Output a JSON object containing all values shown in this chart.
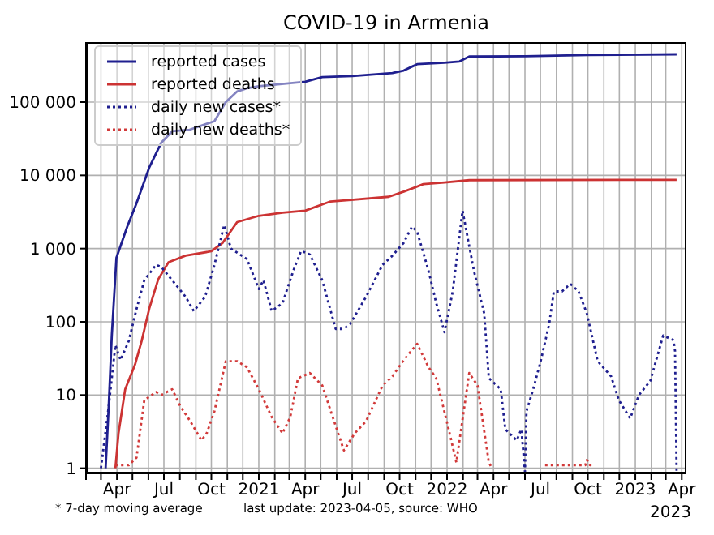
{
  "chart_data": {
    "type": "line",
    "title": "COVID-19 in Armenia",
    "annotations": [
      "* 7-day moving average",
      "last update: 2023-04-05, source: WHO",
      "2023"
    ],
    "log": "y",
    "grid": true,
    "legend": "top left",
    "marker": "none",
    "xlim": [
      "2020-02-01",
      "2023-04-10"
    ],
    "xticks": [
      {
        "value": "2020-02-01",
        "label": null
      },
      {
        "value": "2020-03-01",
        "label": null
      },
      {
        "value": "2020-04-01",
        "label": "Apr"
      },
      {
        "value": "2020-05-01",
        "label": null
      },
      {
        "value": "2020-06-01",
        "label": null
      },
      {
        "value": "2020-07-01",
        "label": "Jul"
      },
      {
        "value": "2020-08-01",
        "label": null
      },
      {
        "value": "2020-09-01",
        "label": null
      },
      {
        "value": "2020-10-01",
        "label": "Oct"
      },
      {
        "value": "2020-11-01",
        "label": null
      },
      {
        "value": "2020-12-01",
        "label": null
      },
      {
        "value": "2021-01-01",
        "label": "2021"
      },
      {
        "value": "2021-02-01",
        "label": null
      },
      {
        "value": "2021-03-01",
        "label": null
      },
      {
        "value": "2021-04-01",
        "label": "Apr"
      },
      {
        "value": "2021-05-01",
        "label": null
      },
      {
        "value": "2021-06-01",
        "label": null
      },
      {
        "value": "2021-07-01",
        "label": "Jul"
      },
      {
        "value": "2021-08-01",
        "label": null
      },
      {
        "value": "2021-09-01",
        "label": null
      },
      {
        "value": "2021-10-01",
        "label": "Oct"
      },
      {
        "value": "2021-11-01",
        "label": null
      },
      {
        "value": "2021-12-01",
        "label": null
      },
      {
        "value": "2022-01-01",
        "label": "2022"
      },
      {
        "value": "2022-02-01",
        "label": null
      },
      {
        "value": "2022-03-01",
        "label": null
      },
      {
        "value": "2022-04-01",
        "label": "Apr"
      },
      {
        "value": "2022-05-01",
        "label": null
      },
      {
        "value": "2022-06-01",
        "label": null
      },
      {
        "value": "2022-07-01",
        "label": "Jul"
      },
      {
        "value": "2022-08-01",
        "label": null
      },
      {
        "value": "2022-09-01",
        "label": null
      },
      {
        "value": "2022-10-01",
        "label": "Oct"
      },
      {
        "value": "2022-11-01",
        "label": null
      },
      {
        "value": "2022-12-01",
        "label": null
      },
      {
        "value": "2023-01-01",
        "label": "2023"
      },
      {
        "value": "2023-02-01",
        "label": null
      },
      {
        "value": "2023-03-01",
        "label": null
      },
      {
        "value": "2023-04-01",
        "label": "Apr"
      }
    ],
    "ylim": [
      0.85,
      660000
    ],
    "yticks": [
      1,
      10,
      100,
      {
        "value": 1000,
        "label": "1 000"
      },
      {
        "value": 10000,
        "label": "10 000"
      },
      {
        "value": 100000,
        "label": "100 000"
      }
    ],
    "series": [
      {
        "name": "reported cases",
        "color": "#1f1f8f",
        "line_style": "solid",
        "x": [
          "2020-03-10",
          "2020-03-16",
          "2020-03-22",
          "2020-03-31",
          "2020-04-21",
          "2020-05-08",
          "2020-06-03",
          "2020-06-26",
          "2020-07-17",
          "2020-08-20",
          "2020-10-07",
          "2020-10-29",
          "2020-11-20",
          "2020-12-09",
          "2021-01-01",
          "2021-04-01",
          "2021-05-04",
          "2021-07-01",
          "2021-09-17",
          "2021-10-09",
          "2021-11-04",
          "2021-12-27",
          "2022-01-25",
          "2022-02-13",
          "2022-06-01",
          "2022-10-01",
          "2023-03-22"
        ],
        "values": [
          1,
          7,
          65,
          750,
          2000,
          4000,
          13000,
          28000,
          40000,
          42000,
          55000,
          100000,
          140000,
          155000,
          165000,
          190000,
          220000,
          227000,
          250000,
          270000,
          330000,
          345000,
          360000,
          420000,
          423000,
          440000,
          450000
        ]
      },
      {
        "name": "reported deaths",
        "color": "#cc3333",
        "line_style": "solid",
        "x": [
          "2020-03-29",
          "2020-04-04",
          "2020-04-17",
          "2020-05-06",
          "2020-05-19",
          "2020-06-03",
          "2020-06-20",
          "2020-07-10",
          "2020-08-12",
          "2020-10-01",
          "2020-10-23",
          "2020-11-20",
          "2021-01-01",
          "2021-02-16",
          "2021-04-01",
          "2021-05-20",
          "2021-06-24",
          "2021-09-10",
          "2021-10-09",
          "2021-11-16",
          "2021-12-27",
          "2022-02-13",
          "2023-03-22"
        ],
        "values": [
          1,
          3,
          12,
          26,
          55,
          155,
          380,
          650,
          800,
          920,
          1200,
          2300,
          2800,
          3100,
          3300,
          4400,
          4600,
          5100,
          6000,
          7600,
          8000,
          8600,
          8700
        ]
      },
      {
        "name": "daily new cases*",
        "color": "#1f1f8f",
        "line_style": "dotted",
        "x": [
          "2020-03-01",
          "2020-03-16",
          "2020-03-29",
          "2020-04-08",
          "2020-04-24",
          "2020-05-09",
          "2020-05-24",
          "2020-06-16",
          "2020-06-26",
          "2020-07-17",
          "2020-08-12",
          "2020-08-28",
          "2020-09-19",
          "2020-10-07",
          "2020-10-26",
          "2020-11-08",
          "2020-12-09",
          "2021-01-01",
          "2021-01-10",
          "2021-01-26",
          "2021-02-16",
          "2021-03-09",
          "2021-03-24",
          "2021-04-10",
          "2021-05-04",
          "2021-05-30",
          "2021-06-15",
          "2021-06-27",
          "2021-07-28",
          "2021-08-29",
          "2021-09-17",
          "2021-10-09",
          "2021-10-25",
          "2021-11-04",
          "2021-11-26",
          "2021-12-11",
          "2021-12-27",
          "2022-01-12",
          "2022-01-31",
          "2022-02-22",
          "2022-03-14",
          "2022-03-23",
          "2022-04-15",
          "2022-04-24",
          "2022-05-16",
          "2022-05-25",
          "2022-06-01",
          "2022-06-04",
          "2022-06-17",
          "2022-07-02",
          "2022-07-18",
          "2022-07-27",
          "2022-08-12",
          "2022-08-28",
          "2022-09-13",
          "2022-09-29",
          "2022-10-20",
          "2022-11-15",
          "2022-11-30",
          "2022-12-22",
          "2023-01-08",
          "2023-01-30",
          "2023-02-24",
          "2023-03-16",
          "2023-03-19",
          "2023-03-22"
        ],
        "values": [
          1,
          7,
          48,
          30,
          55,
          150,
          370,
          600,
          560,
          370,
          220,
          140,
          220,
          600,
          2100,
          1000,
          720,
          280,
          370,
          140,
          180,
          500,
          930,
          830,
          370,
          80,
          80,
          93,
          220,
          600,
          800,
          1200,
          2000,
          1700,
          500,
          180,
          72,
          260,
          3300,
          500,
          130,
          17,
          12,
          3.4,
          2.4,
          3.4,
          0.9,
          6,
          12,
          30,
          93,
          260,
          260,
          330,
          260,
          130,
          29,
          18,
          8.5,
          4.8,
          10,
          15.6,
          65,
          56,
          40,
          0.9
        ]
      },
      {
        "name": "daily new deaths*",
        "color": "#d23a3a",
        "line_style": "dotted",
        "x": [
          "2020-03-29",
          "2020-04-24",
          "2020-05-09",
          "2020-05-24",
          "2020-06-16",
          "2020-06-26",
          "2020-07-17",
          "2020-08-02",
          "2020-08-21",
          "2020-09-12",
          "2020-09-22",
          "2020-10-07",
          "2020-10-29",
          "2020-11-20",
          "2020-12-09",
          "2021-01-01",
          "2021-01-26",
          "2021-02-16",
          "2021-03-03",
          "2021-03-18",
          "2021-04-10",
          "2021-05-04",
          "2021-05-27",
          "2021-06-15",
          "2021-07-06",
          "2021-07-28",
          "2021-08-29",
          "2021-09-17",
          "2021-10-09",
          "2021-11-04",
          "2021-11-26",
          "2021-12-11",
          "2022-01-06",
          "2022-01-19",
          "2022-02-13",
          "2022-03-01",
          "2022-03-23",
          "2022-03-29",
          "2022-05-01",
          "2022-07-10",
          "2022-07-18",
          "2022-07-26",
          "2022-08-20",
          "2022-08-28",
          "2022-09-05",
          "2022-09-26",
          "2022-09-29",
          "2022-10-05",
          "2022-10-10"
        ],
        "values": [
          1.1,
          1.1,
          1.4,
          8.5,
          11,
          10,
          12,
          7,
          4.4,
          2.4,
          3,
          6,
          29,
          29,
          24,
          12,
          5,
          3,
          5,
          17,
          20,
          13.5,
          4.4,
          1.75,
          3,
          4.4,
          13.5,
          18,
          30,
          50,
          24,
          17,
          3,
          1.2,
          20,
          13.5,
          1.2,
          1,
          null,
          1.1,
          1.1,
          1.1,
          1.1,
          1.1,
          1.1,
          1.1,
          1.3,
          1.1,
          1.1
        ]
      }
    ]
  }
}
